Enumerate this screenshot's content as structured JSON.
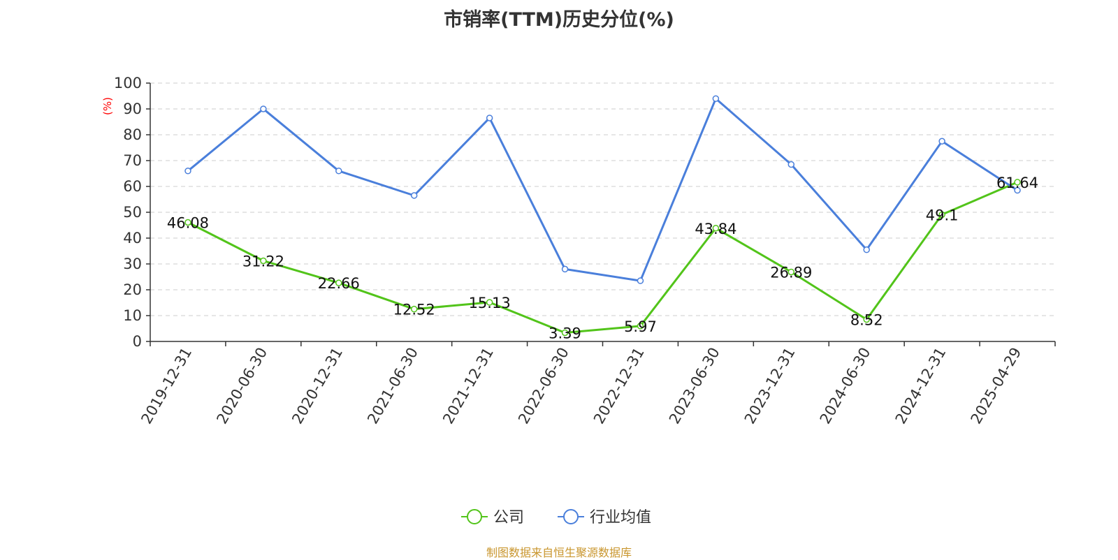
{
  "chart_data": {
    "type": "line",
    "title": "市销率(TTM)历史分位(%)",
    "ylabel": "(%)",
    "xlabel": "",
    "ylim": [
      0,
      100
    ],
    "yticks": [
      0,
      10,
      20,
      30,
      40,
      50,
      60,
      70,
      80,
      90,
      100
    ],
    "grid": true,
    "legend_position": "bottom-center",
    "categories": [
      "2019-12-31",
      "2020-06-30",
      "2020-12-31",
      "2021-06-30",
      "2021-12-31",
      "2022-06-30",
      "2022-12-31",
      "2023-06-30",
      "2023-12-31",
      "2024-06-30",
      "2024-12-31",
      "2025-04-29"
    ],
    "series": [
      {
        "name": "公司",
        "color": "#52c41a",
        "show_labels": true,
        "values": [
          46.08,
          31.22,
          22.66,
          12.52,
          15.13,
          3.39,
          5.97,
          43.84,
          26.89,
          8.52,
          49.1,
          61.64
        ]
      },
      {
        "name": "行业均值",
        "color": "#4a7fdb",
        "show_labels": false,
        "values": [
          66,
          90,
          66,
          56.5,
          86.5,
          28,
          23.5,
          94,
          68.5,
          35.5,
          77.5,
          58.5
        ]
      }
    ]
  },
  "footer": {
    "source": "制图数据来自恒生聚源数据库"
  },
  "colors": {
    "axis": "#333333",
    "grid": "#cccccc",
    "ylabel": "#ff0000",
    "source": "#c9962e"
  }
}
